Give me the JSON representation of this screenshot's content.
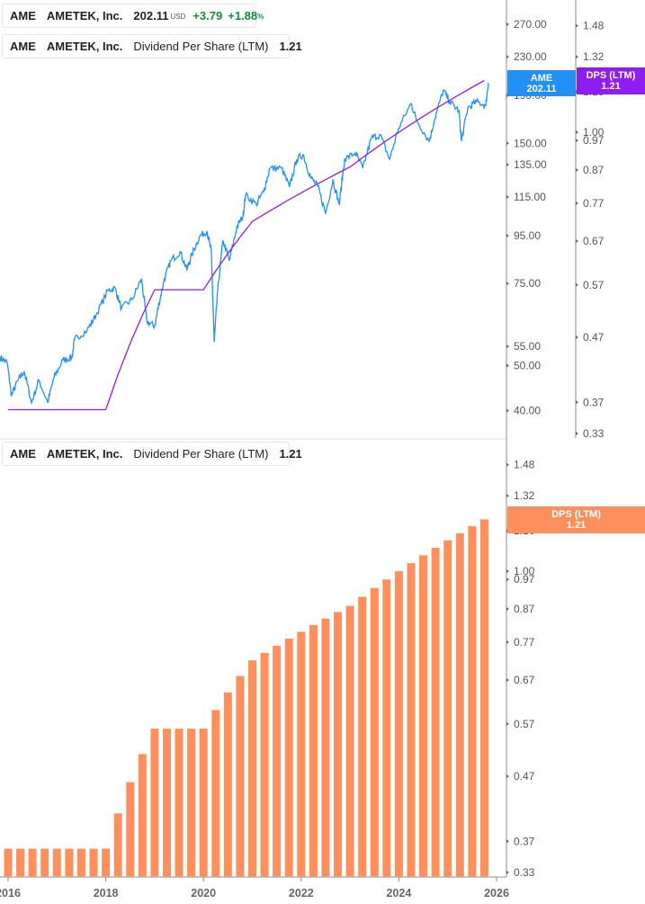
{
  "legend_price": {
    "ticker": "AME",
    "name": "AMETEK, Inc.",
    "price": "202.11",
    "currency": "USD",
    "change": "+3.79",
    "change_pct": "+1.88",
    "pct_sign": "%"
  },
  "legend_dps_top": {
    "ticker": "AME",
    "name": "AMETEK, Inc.",
    "metric": "Dividend Per Share (LTM)",
    "value": "1.21"
  },
  "legend_dps_bottom": {
    "ticker": "AME",
    "name": "AMETEK, Inc.",
    "metric": "Dividend Per Share (LTM)",
    "value": "1.21"
  },
  "badges": {
    "price": {
      "line1": "AME",
      "line2": "202.11"
    },
    "dps_top": {
      "line1": "DPS (LTM)",
      "line2": "1.21"
    },
    "dps_bottom": {
      "line1": "DPS (LTM)",
      "line2": "1.21"
    }
  },
  "colors": {
    "price": "#2190f5",
    "dps_line": "#8f1cf0",
    "dps_bar": "#ff8f5c",
    "axis": "#b3b3b3",
    "positive": "#1a8a3a"
  },
  "chart_data": [
    {
      "type": "line",
      "scale": "log",
      "grid": false,
      "legend_placement": "top-left",
      "price_axis_ticks": [
        "270.00",
        "230.00",
        "190.00",
        "150.00",
        "135.00",
        "115.00",
        "95.00",
        "75.00",
        "55.00",
        "50.00",
        "40.00"
      ],
      "dps_axis_ticks": [
        "1.48",
        "1.32",
        "1.16",
        "1.00",
        "0.97",
        "0.87",
        "0.77",
        "0.67",
        "0.57",
        "0.47",
        "0.37",
        "0.33"
      ],
      "price_ylim": [
        38,
        300
      ],
      "dps_ylim": [
        0.32,
        1.6
      ],
      "series": [
        {
          "name": "AME",
          "axis": "price",
          "points": [
            [
              2015.83,
              52.1
            ],
            [
              2015.98,
              50.8
            ],
            [
              2016.07,
              43.1
            ],
            [
              2016.2,
              46.5
            ],
            [
              2016.33,
              48.6
            ],
            [
              2016.48,
              41.6
            ],
            [
              2016.63,
              46.5
            ],
            [
              2016.81,
              41.7
            ],
            [
              2016.94,
              47.1
            ],
            [
              2017.12,
              51.4
            ],
            [
              2017.31,
              52.1
            ],
            [
              2017.36,
              57.0
            ],
            [
              2017.62,
              59.6
            ],
            [
              2017.8,
              64.2
            ],
            [
              2018.04,
              72.4
            ],
            [
              2018.19,
              73.4
            ],
            [
              2018.32,
              66.3
            ],
            [
              2018.54,
              69.3
            ],
            [
              2018.73,
              76.8
            ],
            [
              2018.84,
              62.3
            ],
            [
              2019.0,
              60.7
            ],
            [
              2019.09,
              68.1
            ],
            [
              2019.2,
              76.8
            ],
            [
              2019.33,
              83.9
            ],
            [
              2019.52,
              87.8
            ],
            [
              2019.66,
              80.3
            ],
            [
              2019.76,
              86.5
            ],
            [
              2019.92,
              94.6
            ],
            [
              2020.07,
              97.2
            ],
            [
              2020.16,
              87.8
            ],
            [
              2020.22,
              56.2
            ],
            [
              2020.29,
              72.4
            ],
            [
              2020.4,
              92.9
            ],
            [
              2020.53,
              83.9
            ],
            [
              2020.68,
              98.9
            ],
            [
              2020.81,
              104.8
            ],
            [
              2020.86,
              116.1
            ],
            [
              2021.08,
              111.0
            ],
            [
              2021.23,
              118.1
            ],
            [
              2021.36,
              132.6
            ],
            [
              2021.6,
              132.6
            ],
            [
              2021.76,
              120.8
            ],
            [
              2021.91,
              138.6
            ],
            [
              2022.04,
              141.8
            ],
            [
              2022.19,
              126.8
            ],
            [
              2022.34,
              121.3
            ],
            [
              2022.5,
              106.2
            ],
            [
              2022.65,
              125.1
            ],
            [
              2022.78,
              111.0
            ],
            [
              2022.89,
              138.6
            ],
            [
              2023.11,
              143.0
            ],
            [
              2023.26,
              132.6
            ],
            [
              2023.44,
              154.2
            ],
            [
              2023.62,
              156.3
            ],
            [
              2023.81,
              138.6
            ],
            [
              2023.99,
              161.2
            ],
            [
              2024.25,
              182.6
            ],
            [
              2024.36,
              168.6
            ],
            [
              2024.62,
              151.5
            ],
            [
              2024.73,
              168.6
            ],
            [
              2024.91,
              195.2
            ],
            [
              2025.04,
              184.2
            ],
            [
              2025.23,
              176.2
            ],
            [
              2025.28,
              151.5
            ],
            [
              2025.41,
              178.6
            ],
            [
              2025.59,
              184.2
            ],
            [
              2025.78,
              180.9
            ],
            [
              2025.83,
              202.11
            ]
          ]
        },
        {
          "name": "DPS (LTM)",
          "axis": "dps",
          "source": "bar_series"
        }
      ]
    },
    {
      "type": "bar",
      "scale": "log",
      "grid": false,
      "legend_placement": "top-left",
      "y_ticks": [
        "1.48",
        "1.32",
        "1.16",
        "1.00",
        "0.97",
        "0.87",
        "0.77",
        "0.67",
        "0.57",
        "0.47",
        "0.37",
        "0.33"
      ],
      "x_ticks": [
        "2016",
        "2018",
        "2020",
        "2022",
        "2024",
        "2026"
      ],
      "xlim": [
        2015.83,
        2026.2
      ],
      "ylim": [
        0.32,
        1.6
      ],
      "x": [
        2016.0,
        2016.25,
        2016.5,
        2016.75,
        2017.0,
        2017.25,
        2017.5,
        2017.75,
        2018.0,
        2018.25,
        2018.5,
        2018.75,
        2019.0,
        2019.25,
        2019.5,
        2019.75,
        2020.0,
        2020.25,
        2020.5,
        2020.75,
        2021.0,
        2021.25,
        2021.5,
        2021.75,
        2022.0,
        2022.25,
        2022.5,
        2022.75,
        2023.0,
        2023.25,
        2023.5,
        2023.75,
        2024.0,
        2024.25,
        2024.5,
        2024.75,
        2025.0,
        2025.25,
        2025.5,
        2025.75
      ],
      "values": [
        0.36,
        0.36,
        0.36,
        0.36,
        0.36,
        0.36,
        0.36,
        0.36,
        0.36,
        0.41,
        0.46,
        0.51,
        0.56,
        0.56,
        0.56,
        0.56,
        0.56,
        0.6,
        0.64,
        0.68,
        0.72,
        0.74,
        0.76,
        0.78,
        0.8,
        0.82,
        0.84,
        0.86,
        0.88,
        0.91,
        0.94,
        0.97,
        1.0,
        1.03,
        1.06,
        1.09,
        1.12,
        1.15,
        1.18,
        1.21
      ]
    }
  ]
}
